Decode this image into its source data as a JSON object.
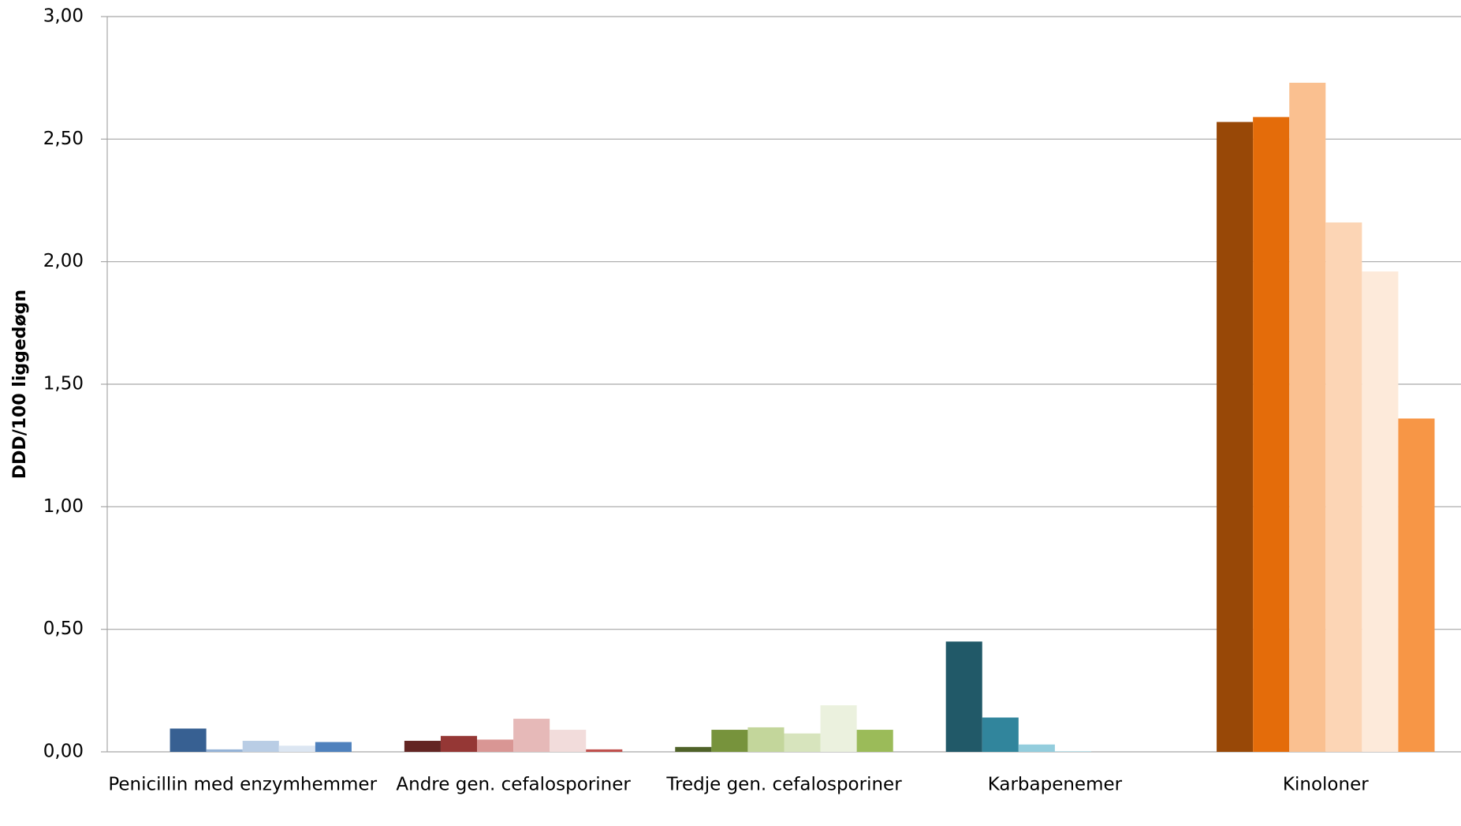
{
  "chart_data": {
    "type": "bar",
    "y_label": "DDD/100 liggedøgn",
    "categories": [
      "Penicillin med enzymhemmer",
      "Andre gen. cefalosporiner",
      "Tredje gen. cefalosporiner",
      "Karbapenemer",
      "Kinoloner"
    ],
    "series": [
      {
        "colors": [
          "#254061",
          "#632523",
          "#4f6228",
          "#215968",
          "#984807"
        ],
        "values": [
          0,
          0.045,
          0.02,
          0.45,
          2.57
        ]
      },
      {
        "colors": [
          "#376092",
          "#953735",
          "#77933c",
          "#31859c",
          "#e46c0a"
        ],
        "values": [
          0.095,
          0.065,
          0.09,
          0.14,
          2.59
        ]
      },
      {
        "colors": [
          "#95b3d7",
          "#d99694",
          "#c3d69b",
          "#93cddd",
          "#fac090"
        ],
        "values": [
          0.01,
          0.05,
          0.1,
          0.03,
          2.73
        ]
      },
      {
        "colors": [
          "#b9cde5",
          "#e6b9b8",
          "#d7e4bd",
          "#b7dee8",
          "#fcd5b5"
        ],
        "values": [
          0.045,
          0.135,
          0.075,
          0.003,
          2.16
        ]
      },
      {
        "colors": [
          "#dce6f2",
          "#f2dcdb",
          "#ebf1de",
          "#dbeef4",
          "#fdeada"
        ],
        "values": [
          0.025,
          0.09,
          0.19,
          0,
          1.96
        ]
      },
      {
        "colors": [
          "#4f81bd",
          "#c0504d",
          "#9bbb59",
          "#4bacc6",
          "#f79646"
        ],
        "values": [
          0.04,
          0.01,
          0.09,
          0,
          1.36
        ]
      }
    ],
    "ylim": [
      0,
      3
    ],
    "yticks": [
      {
        "value": 0,
        "label": "0,00"
      },
      {
        "value": 0.5,
        "label": "0,50"
      },
      {
        "value": 1,
        "label": "1,00"
      },
      {
        "value": 1.5,
        "label": "1,50"
      },
      {
        "value": 2,
        "label": "2,00"
      },
      {
        "value": 2.5,
        "label": "2,50"
      },
      {
        "value": 3,
        "label": "3,00"
      }
    ],
    "grid": true
  }
}
